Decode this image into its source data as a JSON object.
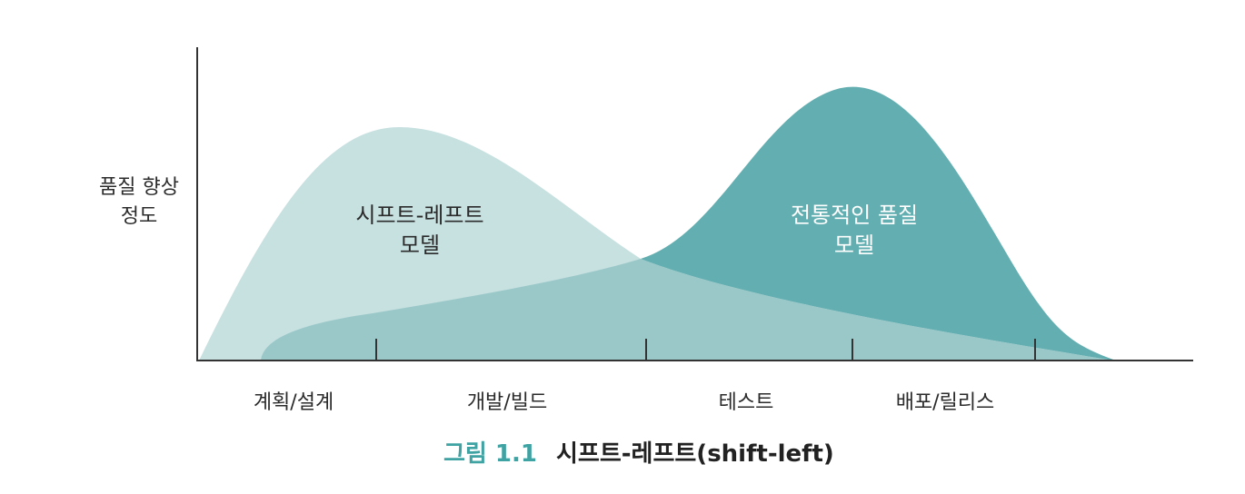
{
  "y_axis_label": [
    "품질 향상",
    "정도"
  ],
  "stages": [
    "계획/설계",
    "개발/빌드",
    "테스트",
    "배포/릴리스"
  ],
  "curves": {
    "shift_left": {
      "label": [
        "시프트-레프트",
        "모델"
      ],
      "color": "#c7e0e0"
    },
    "traditional": {
      "label": [
        "전통적인 품질",
        "모델"
      ],
      "color": "#62aeb0"
    },
    "overlap_color": "#9ac8c9"
  },
  "caption": {
    "number": "그림 1.1",
    "title": "시프트-레프트(shift-left)"
  }
}
